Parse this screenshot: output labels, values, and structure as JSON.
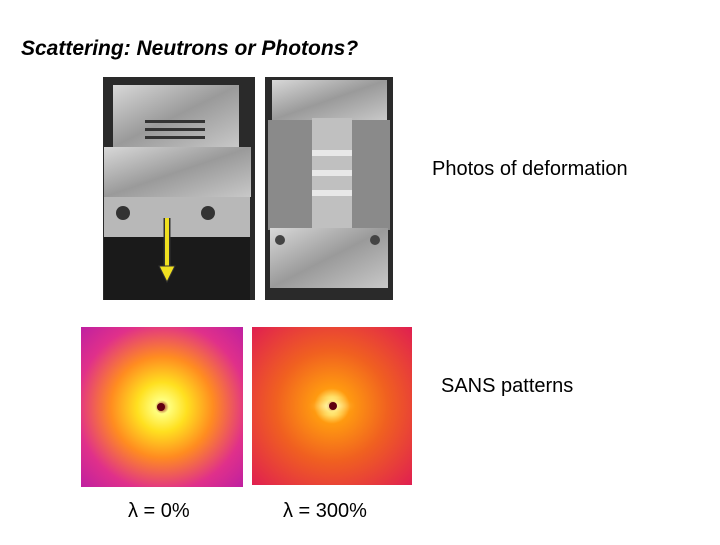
{
  "slide": {
    "title": "Scattering: Neutrons or Photons?",
    "photos_label": "Photos of deformation",
    "patterns_label": "SANS patterns",
    "captions": [
      "λ = 0%",
      "λ = 300%"
    ]
  }
}
